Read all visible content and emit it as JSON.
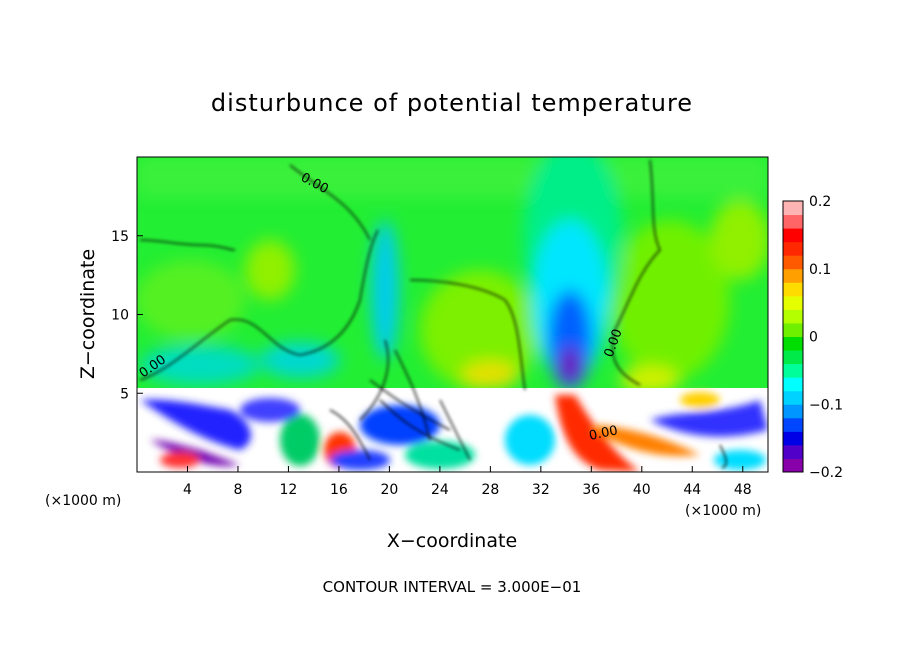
{
  "chart_data": {
    "type": "heatmap",
    "title": "disturbunce of potential temperature",
    "xlabel": "X−coordinate",
    "ylabel": "Z−coordinate",
    "x_unit": "(×1000 m)",
    "z_unit": "(×1000 m)",
    "xlim": [
      0,
      50
    ],
    "ylim": [
      0,
      20
    ],
    "x_ticks": [
      4,
      8,
      12,
      16,
      20,
      24,
      28,
      32,
      36,
      40,
      44,
      48
    ],
    "y_ticks": [
      5,
      10,
      15
    ],
    "colorbar": {
      "range": [
        -0.2,
        0.2
      ],
      "tick_labels": [
        "0.2",
        "0.1",
        "0",
        "−0.1",
        "−0.2"
      ],
      "tick_values": [
        0.2,
        0.1,
        0,
        -0.1,
        -0.2
      ],
      "colors": [
        "#8800aa",
        "#5000c8",
        "#0000e6",
        "#0046ff",
        "#0096ff",
        "#00d2ff",
        "#00ffff",
        "#00ff9a",
        "#00ea4a",
        "#00dd00",
        "#6ef000",
        "#b4ff00",
        "#e6ff00",
        "#ffdc00",
        "#ffa000",
        "#ff5a00",
        "#ff2800",
        "#ff0000",
        "#ff6466",
        "#ffb4b4"
      ]
    },
    "contour_labels": [
      "0.00",
      "0.00",
      "0.00",
      "0.00"
    ],
    "footer": "CONTOUR INTERVAL = 3.000E−01"
  }
}
